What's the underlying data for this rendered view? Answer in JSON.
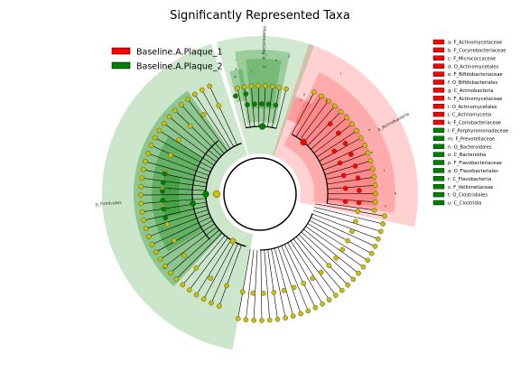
{
  "chart_data": {
    "type": "cladogram",
    "title": "Significantly Represented Taxa",
    "colors": {
      "group_1": "#ff0000",
      "group_2": "#008000",
      "neutral": "#c8c000",
      "group_1_shade": "#ff0000",
      "group_2_shade": "#008000"
    },
    "legend_main": [
      {
        "label": "Baseline.A.Plaque_1",
        "color": "#ff0000"
      },
      {
        "label": "Baseline.A.Plaque_2",
        "color": "#008000"
      }
    ],
    "legend_side": [
      {
        "label": "a: F_Actinomycetaceae",
        "color": "#ff0000"
      },
      {
        "label": "b: F_Corynebacteriaceae",
        "color": "#ff0000"
      },
      {
        "label": "c: F_Micrococcaceae",
        "color": "#ff0000"
      },
      {
        "label": "d: O_Actinomycetales",
        "color": "#ff0000"
      },
      {
        "label": "e: F_Bifidobacteriaceae",
        "color": "#ff0000"
      },
      {
        "label": "f: O_Bifidobacteriales",
        "color": "#ff0000"
      },
      {
        "label": "g: C_Actinobacteria",
        "color": "#ff0000"
      },
      {
        "label": "h: F_Actinomycetaceae",
        "color": "#ff0000"
      },
      {
        "label": "i: O_Actinomycetales",
        "color": "#ff0000"
      },
      {
        "label": "j: C_Actinomycetia",
        "color": "#ff0000"
      },
      {
        "label": "k: F_Coriobacteriaceae",
        "color": "#ff0000"
      },
      {
        "label": "l: F_Porphyromonadaceae",
        "color": "#008000"
      },
      {
        "label": "m: F_Prevotellaceae",
        "color": "#008000"
      },
      {
        "label": "n: O_Bacteroidales",
        "color": "#008000"
      },
      {
        "label": "o: C_Bacteroidia",
        "color": "#008000"
      },
      {
        "label": "p: F_Flavobacteriaceae",
        "color": "#008000"
      },
      {
        "label": "q: O_Flavobacteriales",
        "color": "#008000"
      },
      {
        "label": "r: C_Flavobacteriia",
        "color": "#008000"
      },
      {
        "label": "s: F_Veillonellaceae",
        "color": "#008000"
      },
      {
        "label": "t: O_Clostridiales",
        "color": "#008000"
      },
      {
        "label": "u: C_Clostridia",
        "color": "#008000"
      }
    ],
    "clades": [
      {
        "label": "p_Actinobacteria",
        "color": "#ff0000"
      },
      {
        "label": "p_Bacteroidetes",
        "color": "#008000"
      },
      {
        "label": "p_Firmicutes",
        "color": "#008000"
      }
    ],
    "clade_letters": [
      "a",
      "b",
      "c",
      "d",
      "e",
      "f",
      "g",
      "h",
      "i",
      "j",
      "k",
      "l",
      "m",
      "n",
      "o",
      "p",
      "q",
      "r",
      "s",
      "t",
      "u"
    ]
  }
}
